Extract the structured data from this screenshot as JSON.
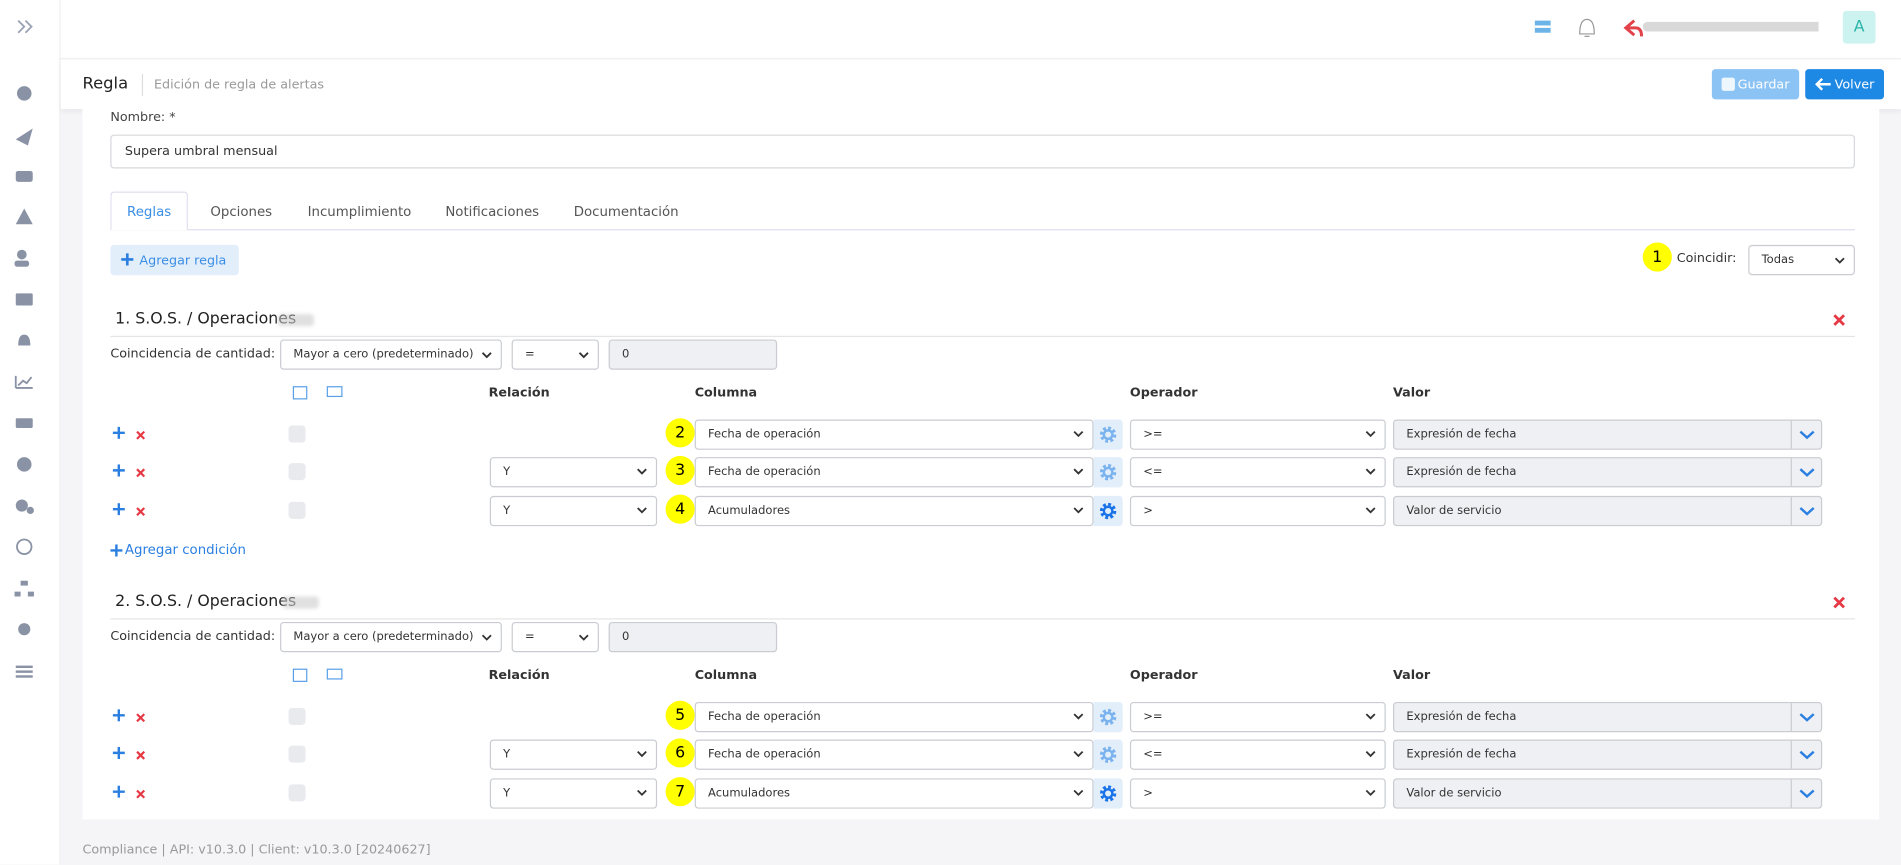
{
  "header": {
    "user_initial": "A"
  },
  "page": {
    "title": "Regla",
    "subtitle": "Edición de regla de alertas",
    "save": "Guardar",
    "back": "Volver"
  },
  "form": {
    "name_label": "Nombre: *",
    "name_value": "Supera umbral mensual"
  },
  "tabs": [
    "Reglas",
    "Opciones",
    "Incumplimiento",
    "Notificaciones",
    "Documentación"
  ],
  "add_rule": "Agregar regla",
  "match": {
    "badge": "1",
    "label": "Coincidir:",
    "value": "Todas"
  },
  "rules": [
    {
      "title": "1. S.O.S. / Operaciones",
      "quantity_label": "Coincidencia de cantidad:",
      "quantity_mode": "Mayor a cero (predeterminado)",
      "quantity_operator": "=",
      "quantity_value": "0",
      "headers": [
        "Relación",
        "Columna",
        "Operador",
        "Valor"
      ],
      "conditions": [
        {
          "badge": "2",
          "column": "Fecha de operación",
          "operator": ">=",
          "value": "Expresión de fecha"
        },
        {
          "badge": "3",
          "relation": "Y",
          "column": "Fecha de operación",
          "operator": "<=",
          "value": "Expresión de fecha"
        },
        {
          "badge": "4",
          "relation": "Y",
          "column": "Acumuladores",
          "operator": ">",
          "value": "Valor de servicio"
        }
      ],
      "add_condition": "Agregar condición"
    },
    {
      "title": "2. S.O.S. / Operaciones",
      "quantity_label": "Coincidencia de cantidad:",
      "quantity_mode": "Mayor a cero (predeterminado)",
      "quantity_operator": "=",
      "quantity_value": "0",
      "headers": [
        "Relación",
        "Columna",
        "Operador",
        "Valor"
      ],
      "conditions": [
        {
          "badge": "5",
          "column": "Fecha de operación",
          "operator": ">=",
          "value": "Expresión de fecha"
        },
        {
          "badge": "6",
          "relation": "Y",
          "column": "Fecha de operación",
          "operator": "<=",
          "value": "Expresión de fecha"
        },
        {
          "badge": "7",
          "relation": "Y",
          "column": "Acumuladores",
          "operator": ">",
          "value": "Valor de servicio"
        }
      ]
    }
  ],
  "footer": "Compliance | API: v10.3.0 | Client: v10.3.0 [20240627]"
}
